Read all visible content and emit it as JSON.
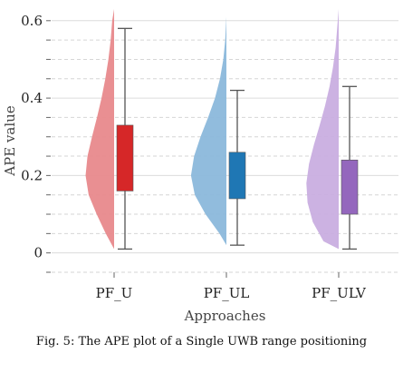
{
  "chart_data": {
    "type": "violin_box",
    "title": "",
    "xlabel": "Approaches",
    "ylabel": "APE value",
    "ylim": [
      -0.05,
      0.63
    ],
    "yticks": [
      0,
      0.2,
      0.4,
      0.6
    ],
    "ytick_labels": [
      "0",
      "0.2",
      "0.4",
      "0.6"
    ],
    "grid": "horizontal",
    "categories": [
      "PF_U",
      "PF_UL",
      "PF_ULV"
    ],
    "series": [
      {
        "name": "PF_U",
        "violin_color": "#e8898c",
        "box_color": "#d62728",
        "box": {
          "whisker_low": 0.01,
          "q1": 0.16,
          "q3": 0.33,
          "whisker_high": 0.58
        },
        "violin_range": [
          0.01,
          0.63
        ],
        "density": [
          [
            0.01,
            0.0
          ],
          [
            0.05,
            0.22
          ],
          [
            0.1,
            0.46
          ],
          [
            0.15,
            0.67
          ],
          [
            0.2,
            0.75
          ],
          [
            0.25,
            0.7
          ],
          [
            0.3,
            0.58
          ],
          [
            0.35,
            0.45
          ],
          [
            0.4,
            0.33
          ],
          [
            0.45,
            0.23
          ],
          [
            0.5,
            0.15
          ],
          [
            0.55,
            0.09
          ],
          [
            0.6,
            0.05
          ],
          [
            0.63,
            0.0
          ]
        ]
      },
      {
        "name": "PF_UL",
        "violin_color": "#8bb8db",
        "box_color": "#1f77b4",
        "box": {
          "whisker_low": 0.02,
          "q1": 0.14,
          "q3": 0.26,
          "whisker_high": 0.42
        },
        "violin_range": [
          0.02,
          0.61
        ],
        "density": [
          [
            0.02,
            0.0
          ],
          [
            0.05,
            0.18
          ],
          [
            0.1,
            0.55
          ],
          [
            0.15,
            0.83
          ],
          [
            0.2,
            0.93
          ],
          [
            0.25,
            0.85
          ],
          [
            0.3,
            0.68
          ],
          [
            0.35,
            0.48
          ],
          [
            0.4,
            0.3
          ],
          [
            0.45,
            0.17
          ],
          [
            0.5,
            0.08
          ],
          [
            0.55,
            0.03
          ],
          [
            0.61,
            0.0
          ]
        ]
      },
      {
        "name": "PF_ULV",
        "violin_color": "#c9aee0",
        "box_color": "#9467bd",
        "box": {
          "whisker_low": 0.01,
          "q1": 0.1,
          "q3": 0.24,
          "whisker_high": 0.43
        },
        "violin_range": [
          0.01,
          0.63
        ],
        "density": [
          [
            0.01,
            0.0
          ],
          [
            0.03,
            0.4
          ],
          [
            0.08,
            0.68
          ],
          [
            0.13,
            0.82
          ],
          [
            0.18,
            0.85
          ],
          [
            0.23,
            0.78
          ],
          [
            0.28,
            0.65
          ],
          [
            0.33,
            0.5
          ],
          [
            0.38,
            0.36
          ],
          [
            0.43,
            0.24
          ],
          [
            0.48,
            0.15
          ],
          [
            0.53,
            0.08
          ],
          [
            0.58,
            0.04
          ],
          [
            0.63,
            0.0
          ]
        ]
      }
    ]
  },
  "caption": "Fig. 5: The APE plot of a Single UWB range positioning"
}
